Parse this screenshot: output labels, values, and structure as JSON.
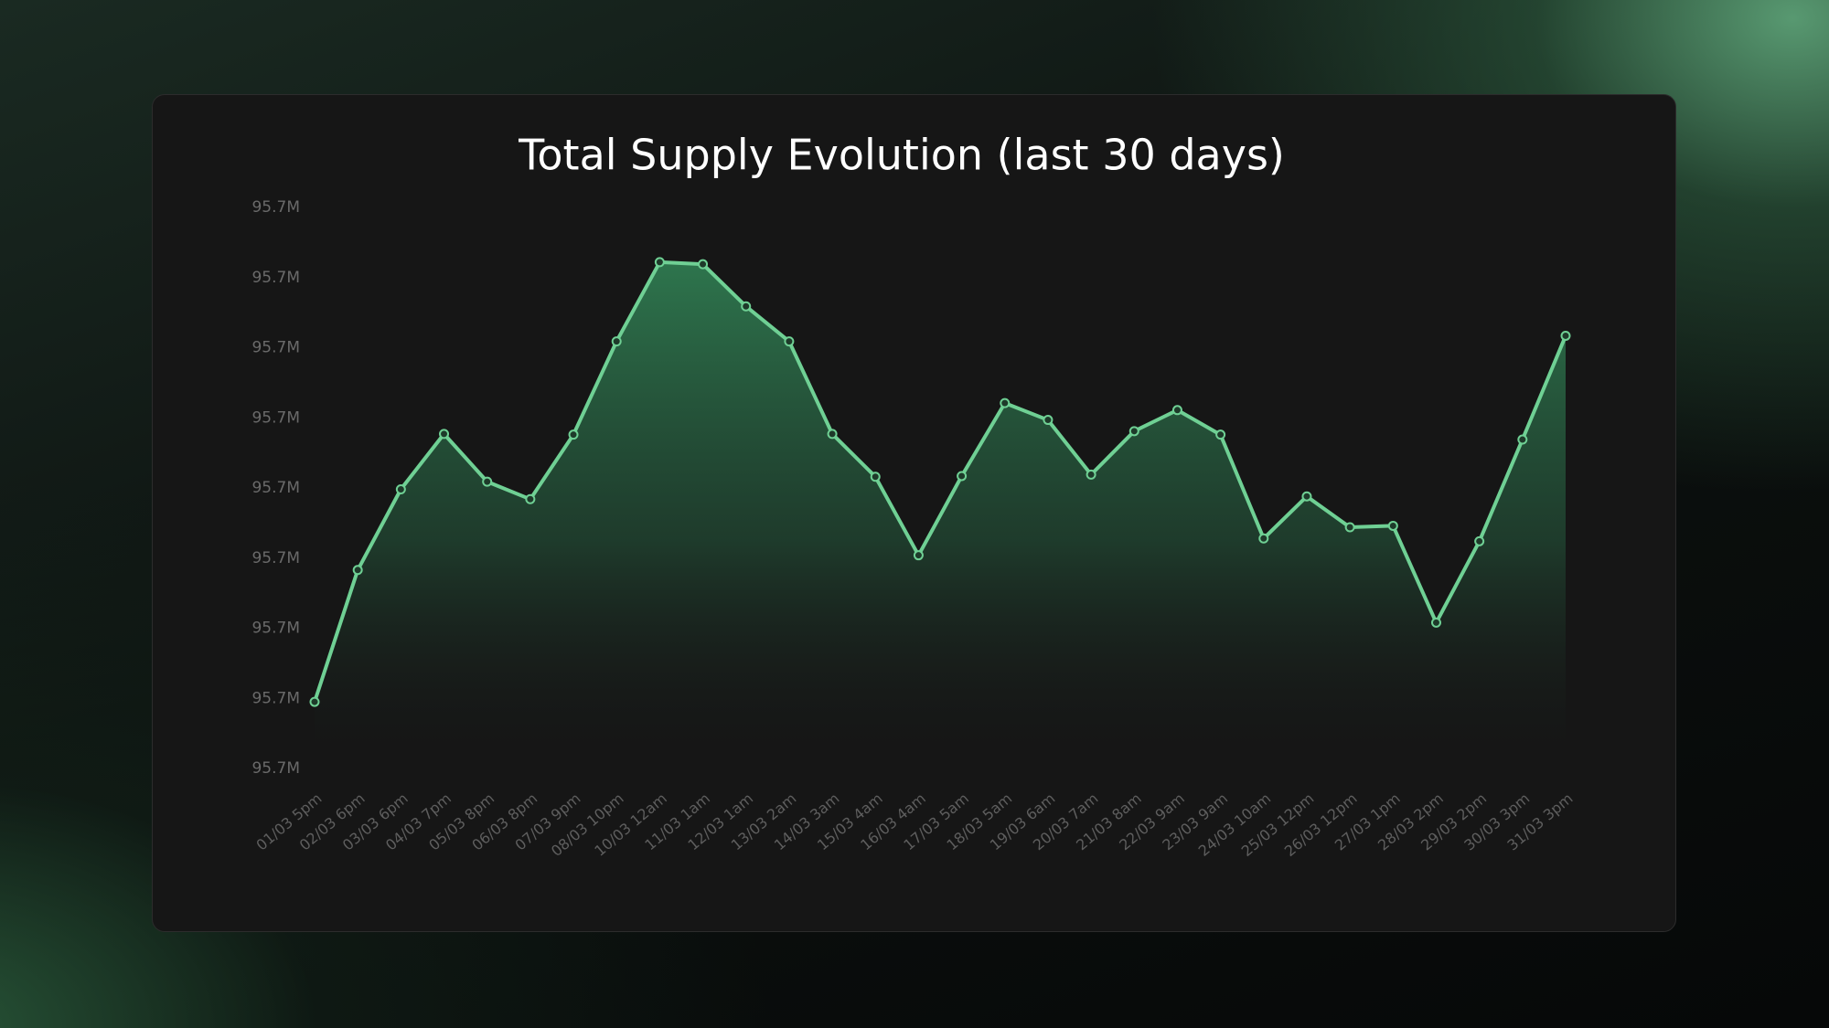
{
  "chart_data": {
    "type": "area",
    "title": "Total Supply Evolution (last 30 days)",
    "categories": [
      "01/03 5pm",
      "02/03 6pm",
      "03/03 6pm",
      "04/03 7pm",
      "05/03 8pm",
      "06/03 8pm",
      "07/03 9pm",
      "08/03 10pm",
      "10/03 12am",
      "11/03 1am",
      "12/03 1am",
      "13/03 2am",
      "14/03 3am",
      "15/03 4am",
      "16/03 4am",
      "17/03 5am",
      "18/03 5am",
      "19/03 6am",
      "20/03 7am",
      "21/03 8am",
      "22/03 9am",
      "23/03 9am",
      "24/03 10am",
      "25/03 12pm",
      "26/03 12pm",
      "27/03 1pm",
      "28/03 2pm",
      "29/03 2pm",
      "30/03 3pm",
      "31/03 3pm"
    ],
    "values": [
      95696950,
      95698830,
      95699980,
      95700770,
      95700090,
      95699840,
      95700760,
      95702090,
      95703220,
      95703190,
      95702590,
      95702090,
      95700770,
      95700160,
      95699040,
      95700170,
      95701210,
      95700970,
      95700190,
      95700810,
      95701110,
      95700760,
      95699280,
      95699880,
      95699440,
      95699460,
      95698080,
      95699240,
      95700690,
      95702170
    ],
    "color": "#6fd094",
    "ylim": [
      95696000,
      95704000
    ],
    "yticks": [
      {
        "value": 95696000,
        "label": "95.7M"
      },
      {
        "value": 95697000,
        "label": "95.7M"
      },
      {
        "value": 95698000,
        "label": "95.7M"
      },
      {
        "value": 95699000,
        "label": "95.7M"
      },
      {
        "value": 95700000,
        "label": "95.7M"
      },
      {
        "value": 95701000,
        "label": "95.7M"
      },
      {
        "value": 95702000,
        "label": "95.7M"
      },
      {
        "value": 95703000,
        "label": "95.7M"
      },
      {
        "value": 95704000,
        "label": "95.7M"
      }
    ],
    "grid": false
  }
}
